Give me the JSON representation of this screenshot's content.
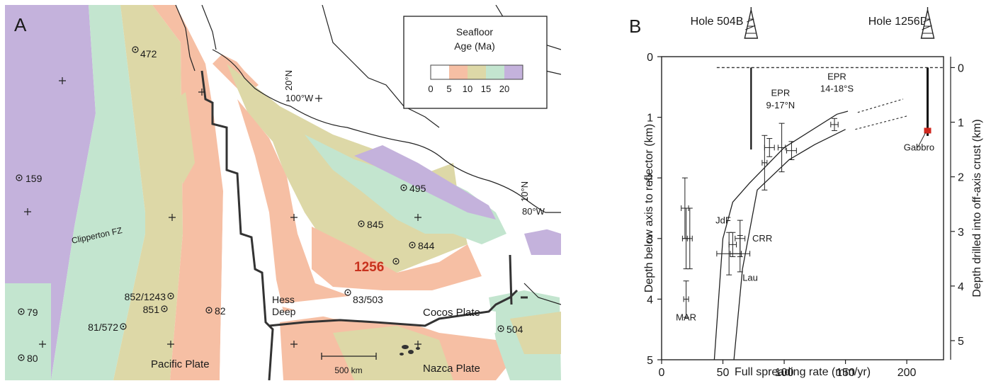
{
  "panel_a": {
    "label": "A",
    "legend": {
      "title_line1": "Seafloor",
      "title_line2": "Age (Ma)",
      "ticks": [
        "0",
        "5",
        "10",
        "15",
        "20"
      ],
      "colors": [
        "#ffffff",
        "#f6bfa4",
        "#ddd8a7",
        "#c3e5cf",
        "#c4b2dc"
      ]
    },
    "sites": {
      "s472": "472",
      "s159": "159",
      "s79": "79",
      "s80": "80",
      "s852": "852/1243",
      "s851": "851",
      "s81": "81/572",
      "s82": "82",
      "s495": "495",
      "s845": "845",
      "s844": "844",
      "s1256": "1256",
      "s83": "83/503",
      "s504": "504"
    },
    "labels": {
      "clipperton": "Clipperton FZ",
      "hess1": "Hess",
      "hess2": "Deep",
      "cocos": "Cocos Plate",
      "pacific": "Pacific Plate",
      "nazca": "Nazca Plate",
      "lat20": "20°N",
      "lon100": "100°W",
      "lat10": "10°N",
      "lon80": "80°W",
      "scale": "500 km"
    },
    "colors": {
      "highlight_site": "#c8321e"
    }
  },
  "panel_b": {
    "label": "B",
    "hole_504b": "Hole 504B",
    "hole_1256d": "Hole 1256D",
    "annotations": {
      "epr1_line1": "EPR",
      "epr1_line2": "9-17°N",
      "epr2_line1": "EPR",
      "epr2_line2": "14-18°S",
      "jdf": "JdF",
      "crr": "CRR",
      "lau": "Lau",
      "mar": "MAR",
      "gabbro": "Gabbro"
    }
  },
  "chart_data": {
    "type": "scatter",
    "xlabel": "Full spreading rate (mm/yr)",
    "ylabel": "Depth below axis to reflector (km)",
    "y2label": "Depth drilled into off-axis crust (km)",
    "xlim": [
      0,
      230
    ],
    "ylim": [
      5,
      0
    ],
    "y2lim": [
      5.35,
      -0.2
    ],
    "xticks": [
      "0",
      "50",
      "100",
      "150",
      "200"
    ],
    "yticks": [
      "0",
      "1",
      "2",
      "3",
      "4",
      "5"
    ],
    "y2ticks": [
      "0",
      "1",
      "2",
      "3",
      "4",
      "5"
    ],
    "points": [
      {
        "x": 19,
        "y": 2.5,
        "xerr": 3,
        "yerr": 0.5
      },
      {
        "x": 20,
        "y": 3.0,
        "xerr": 3,
        "yerr": 0.5
      },
      {
        "x": 20,
        "y": 4.0,
        "xerr": 2,
        "yerr": 0.3
      },
      {
        "x": 23,
        "y": 3.0,
        "xerr": 2,
        "yerr": 0.5
      },
      {
        "x": 55,
        "y": 3.25,
        "xerr": 10,
        "yerr": 0.35
      },
      {
        "x": 58,
        "y": 3.1,
        "xerr": 3,
        "yerr": 0.2
      },
      {
        "x": 64,
        "y": 3.0,
        "xerr": 4,
        "yerr": 0.3
      },
      {
        "x": 64,
        "y": 3.25,
        "xerr": 8,
        "yerr": 0.3
      },
      {
        "x": 84,
        "y": 1.75,
        "xerr": 2,
        "yerr": 0.45
      },
      {
        "x": 88,
        "y": 1.5,
        "xerr": 4,
        "yerr": 0.15
      },
      {
        "x": 98,
        "y": 1.5,
        "xerr": 3,
        "yerr": 0.4
      },
      {
        "x": 106,
        "y": 1.55,
        "xerr": 4,
        "yerr": 0.15
      },
      {
        "x": 141,
        "y": 1.12,
        "xerr": 3,
        "yerr": 0.1
      }
    ],
    "envelope_upper": [
      [
        43,
        5.0
      ],
      [
        50,
        3.0
      ],
      [
        58,
        2.4
      ],
      [
        72,
        2.08
      ],
      [
        100,
        1.5
      ],
      [
        143,
        0.95
      ],
      [
        152,
        0.9
      ]
    ],
    "envelope_lower": [
      [
        59,
        5.0
      ],
      [
        66,
        3.5
      ],
      [
        78,
        2.2
      ],
      [
        104,
        1.7
      ],
      [
        125,
        1.45
      ],
      [
        150,
        1.2
      ]
    ],
    "hole_504b": {
      "x": 73,
      "depth": 1.5
    },
    "hole_1256d": {
      "x": 217,
      "depth": 1.25
    },
    "gabbro": {
      "x": 217,
      "depth": 1.22
    }
  }
}
